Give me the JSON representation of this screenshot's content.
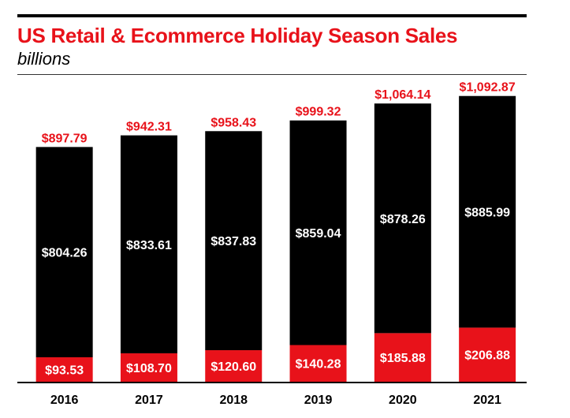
{
  "title": "US Retail & Ecommerce Holiday Season Sales",
  "subtitle": "billions",
  "colors": {
    "ecommerce": "#e8121a",
    "retail_excl_ecommerce": "#000000",
    "title": "#e8121a",
    "total_label": "#e8121a",
    "inner_label": "#ffffff"
  },
  "chart_data": {
    "type": "bar",
    "stacked": true,
    "title": "US Retail & Ecommerce Holiday Season Sales",
    "subtitle": "billions",
    "categories": [
      "2016",
      "2017",
      "2018",
      "2019",
      "2020",
      "2021"
    ],
    "series": [
      {
        "values": [
          93.53,
          108.7,
          120.6,
          140.28,
          185.88,
          206.88
        ],
        "labels": [
          "$93.53",
          "$108.70",
          "$120.60",
          "$140.28",
          "$185.88",
          "$206.88"
        ]
      },
      {
        "values": [
          804.26,
          833.61,
          837.83,
          859.04,
          878.26,
          885.99
        ],
        "labels": [
          "$804.26",
          "$833.61",
          "$837.83",
          "$859.04",
          "$878.26",
          "$885.99"
        ]
      }
    ],
    "totals": [
      897.79,
      942.31,
      958.43,
      999.32,
      1064.14,
      1092.87
    ],
    "total_labels": [
      "$897.79",
      "$942.31",
      "$958.43",
      "$999.32",
      "$1,064.14",
      "$1,092.87"
    ],
    "ylim": [
      0,
      1150
    ],
    "grid": false,
    "legend": "none"
  }
}
